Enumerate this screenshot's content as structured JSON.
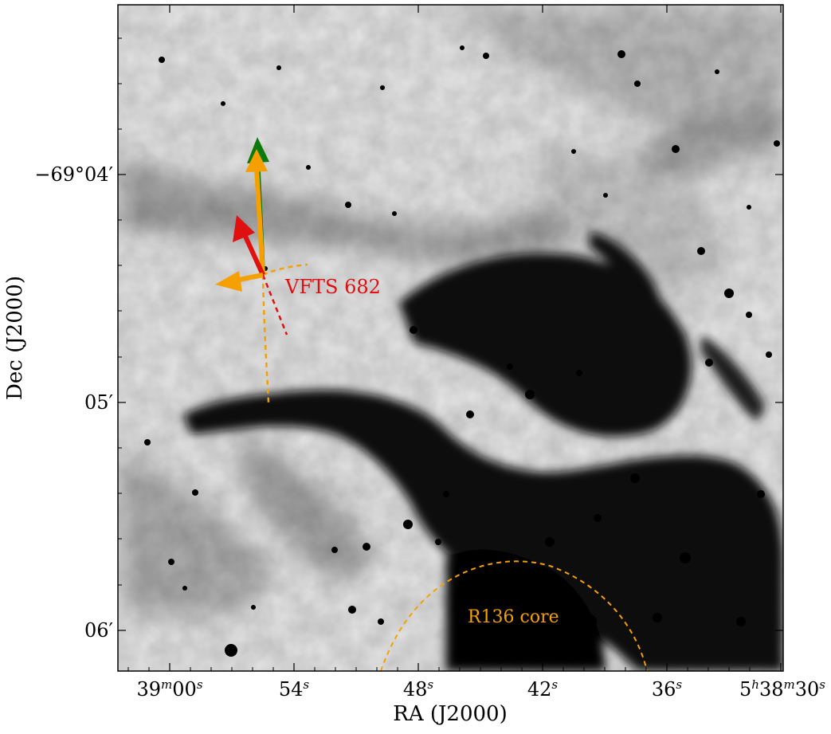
{
  "figure": {
    "xlabel": "RA (J2000)",
    "ylabel": "Dec (J2000)",
    "x_ticks": [
      {
        "pre": "39",
        "sup1": "m",
        "mid": "00",
        "sup2": "s",
        "value": "5h39m00s"
      },
      {
        "pre": "54",
        "sup1": "",
        "mid": "",
        "sup2": "s",
        "value": "5h38m54s"
      },
      {
        "pre": "48",
        "sup1": "",
        "mid": "",
        "sup2": "s",
        "value": "5h38m48s"
      },
      {
        "pre": "42",
        "sup1": "",
        "mid": "",
        "sup2": "s",
        "value": "5h38m42s"
      },
      {
        "pre": "36",
        "sup1": "",
        "mid": "",
        "sup2": "s",
        "value": "5h38m36s"
      },
      {
        "pre": "5",
        "sup1": "h",
        "mid": "38",
        "sup2": "m",
        "post": "30",
        "sup3": "s",
        "value": "5h38m30s"
      }
    ],
    "y_ticks": [
      {
        "text": "−69°04′",
        "value": "-69d04m"
      },
      {
        "text": "05′",
        "value": "-69d05m"
      },
      {
        "text": "06′",
        "value": "-69d06m"
      }
    ],
    "annotations": {
      "star_label": "VFTS 682",
      "cluster_label": "R136 core"
    },
    "colors": {
      "star_label": "#e01010",
      "cluster_label": "#f5a000",
      "arrow_green": "#0a7a0a",
      "arrow_orange": "#f5a000",
      "arrow_red": "#e01010"
    }
  }
}
